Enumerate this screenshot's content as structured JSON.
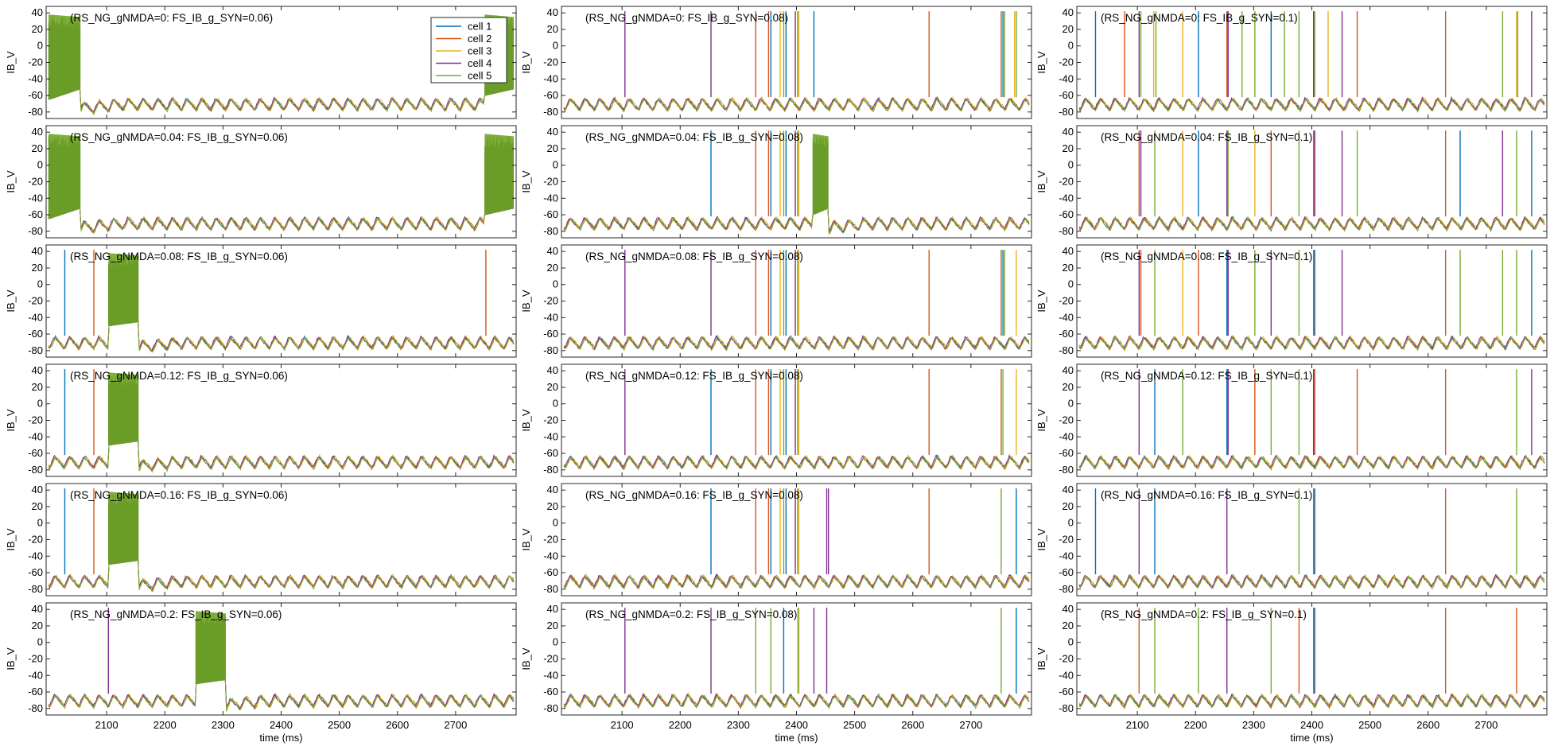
{
  "figure": {
    "ylabel": "IB_V",
    "xlabel": "time (ms)"
  },
  "legend": {
    "placement": "top-right of first panel",
    "entries": [
      {
        "name": "cell 1",
        "color": "#0072BD"
      },
      {
        "name": "cell 2",
        "color": "#D95319"
      },
      {
        "name": "cell 3",
        "color": "#EDB120"
      },
      {
        "name": "cell 4",
        "color": "#7E2F8E"
      },
      {
        "name": "cell 5",
        "color": "#77AC30"
      }
    ]
  },
  "chart_data": {
    "type": "line",
    "layout": "grid 6 rows x 3 columns",
    "xlim": [
      2000,
      2800
    ],
    "ylim": [
      -85,
      45
    ],
    "xticks": [
      2100,
      2200,
      2300,
      2400,
      2500,
      2600,
      2700
    ],
    "yticks": [
      -80,
      -60,
      -40,
      -20,
      0,
      20,
      40
    ],
    "xlabel": "time (ms)",
    "ylabel": "IB_V",
    "grid": false,
    "series_names": [
      "cell 1",
      "cell 2",
      "cell 3",
      "cell 4",
      "cell 5"
    ],
    "columns": [
      {
        "FS_IB_g_SYN": "0.06"
      },
      {
        "FS_IB_g_SYN": "0.08"
      },
      {
        "FS_IB_g_SYN": "0.1"
      }
    ],
    "rows": [
      {
        "RS_NG_gNMDA": "0"
      },
      {
        "RS_NG_gNMDA": "0.04"
      },
      {
        "RS_NG_gNMDA": "0.08"
      },
      {
        "RS_NG_gNMDA": "0.12"
      },
      {
        "RS_NG_gNMDA": "0.16"
      },
      {
        "RS_NG_gNMDA": "0.2"
      }
    ],
    "panels": [
      {
        "title": "(RS_NG_gNMDA=0: FS_IB_g_SYN=0.06)",
        "bursts": [
          {
            "start": 2000,
            "end": 2055,
            "floor_start": -65,
            "floor_end": -52
          },
          {
            "start": 2750,
            "end": 2800,
            "floor_start": -60,
            "floor_end": -52
          }
        ],
        "spikes": []
      },
      {
        "title": "(RS_NG_gNMDA=0: FS_IB_g_SYN=0.08)",
        "bursts": [],
        "spikes": [
          {
            "t": 2105,
            "cell": 4
          },
          {
            "t": 2253,
            "cell": 4
          },
          {
            "t": 2330,
            "cell": 2
          },
          {
            "t": 2352,
            "cell": 2
          },
          {
            "t": 2356,
            "cell": 1
          },
          {
            "t": 2372,
            "cell": 3
          },
          {
            "t": 2378,
            "cell": 5
          },
          {
            "t": 2382,
            "cell": 1
          },
          {
            "t": 2398,
            "cell": 4
          },
          {
            "t": 2402,
            "cell": 5
          },
          {
            "t": 2404,
            "cell": 3
          },
          {
            "t": 2430,
            "cell": 1
          },
          {
            "t": 2628,
            "cell": 2
          },
          {
            "t": 2752,
            "cell": 2
          },
          {
            "t": 2755,
            "cell": 1
          },
          {
            "t": 2758,
            "cell": 5
          },
          {
            "t": 2775,
            "cell": 3
          },
          {
            "t": 2778,
            "cell": 5
          }
        ]
      },
      {
        "title": "(RS_NG_gNMDA=0: FS_IB_g_SYN=0.1)",
        "bursts": [],
        "spikes": [
          {
            "t": 2028,
            "cell": 1
          },
          {
            "t": 2078,
            "cell": 2
          },
          {
            "t": 2103,
            "cell": 4
          },
          {
            "t": 2106,
            "cell": 5
          },
          {
            "t": 2128,
            "cell": 3
          },
          {
            "t": 2132,
            "cell": 5
          },
          {
            "t": 2178,
            "cell": 3
          },
          {
            "t": 2205,
            "cell": 1
          },
          {
            "t": 2254,
            "cell": 2
          },
          {
            "t": 2256,
            "cell": 4
          },
          {
            "t": 2280,
            "cell": 5
          },
          {
            "t": 2302,
            "cell": 5
          },
          {
            "t": 2330,
            "cell": 1
          },
          {
            "t": 2353,
            "cell": 5
          },
          {
            "t": 2378,
            "cell": 5
          },
          {
            "t": 2403,
            "cell": 4
          },
          {
            "t": 2405,
            "cell": 5
          },
          {
            "t": 2428,
            "cell": 3
          },
          {
            "t": 2452,
            "cell": 4
          },
          {
            "t": 2478,
            "cell": 2
          },
          {
            "t": 2630,
            "cell": 2
          },
          {
            "t": 2728,
            "cell": 5
          },
          {
            "t": 2752,
            "cell": 3
          },
          {
            "t": 2754,
            "cell": 5
          },
          {
            "t": 2778,
            "cell": 4
          }
        ]
      },
      {
        "title": "(RS_NG_gNMDA=0.04: FS_IB_g_SYN=0.06)",
        "bursts": [
          {
            "start": 2000,
            "end": 2055,
            "floor_start": -65,
            "floor_end": -52
          },
          {
            "start": 2750,
            "end": 2800,
            "floor_start": -60,
            "floor_end": -52
          }
        ],
        "spikes": []
      },
      {
        "title": "(RS_NG_gNMDA=0.04: FS_IB_g_SYN=0.08)",
        "bursts": [
          {
            "start": 2428,
            "end": 2455,
            "floor_start": -60,
            "floor_end": -52
          }
        ],
        "spikes": [
          {
            "t": 2253,
            "cell": 1
          },
          {
            "t": 2330,
            "cell": 2
          },
          {
            "t": 2352,
            "cell": 2
          },
          {
            "t": 2356,
            "cell": 1
          },
          {
            "t": 2372,
            "cell": 3
          },
          {
            "t": 2378,
            "cell": 5
          },
          {
            "t": 2382,
            "cell": 1
          },
          {
            "t": 2398,
            "cell": 4
          },
          {
            "t": 2402,
            "cell": 5
          },
          {
            "t": 2404,
            "cell": 3
          }
        ]
      },
      {
        "title": "(RS_NG_gNMDA=0.04: FS_IB_g_SYN=0.1)",
        "bursts": [],
        "spikes": [
          {
            "t": 2103,
            "cell": 2
          },
          {
            "t": 2106,
            "cell": 4
          },
          {
            "t": 2130,
            "cell": 5
          },
          {
            "t": 2178,
            "cell": 3
          },
          {
            "t": 2205,
            "cell": 1
          },
          {
            "t": 2254,
            "cell": 4
          },
          {
            "t": 2256,
            "cell": 5
          },
          {
            "t": 2302,
            "cell": 3
          },
          {
            "t": 2330,
            "cell": 2
          },
          {
            "t": 2378,
            "cell": 5
          },
          {
            "t": 2403,
            "cell": 2
          },
          {
            "t": 2405,
            "cell": 4
          },
          {
            "t": 2452,
            "cell": 4
          },
          {
            "t": 2478,
            "cell": 5
          },
          {
            "t": 2630,
            "cell": 2
          },
          {
            "t": 2655,
            "cell": 1
          },
          {
            "t": 2728,
            "cell": 4
          },
          {
            "t": 2752,
            "cell": 5
          },
          {
            "t": 2778,
            "cell": 1
          }
        ]
      },
      {
        "title": "(RS_NG_gNMDA=0.08: FS_IB_g_SYN=0.06)",
        "bursts": [
          {
            "start": 2103,
            "end": 2155,
            "floor_start": -50,
            "floor_end": -45
          }
        ],
        "spikes": [
          {
            "t": 2028,
            "cell": 1
          },
          {
            "t": 2078,
            "cell": 2
          },
          {
            "t": 2752,
            "cell": 2
          }
        ]
      },
      {
        "title": "(RS_NG_gNMDA=0.08: FS_IB_g_SYN=0.08)",
        "bursts": [],
        "spikes": [
          {
            "t": 2105,
            "cell": 4
          },
          {
            "t": 2253,
            "cell": 4
          },
          {
            "t": 2330,
            "cell": 2
          },
          {
            "t": 2352,
            "cell": 2
          },
          {
            "t": 2356,
            "cell": 1
          },
          {
            "t": 2372,
            "cell": 3
          },
          {
            "t": 2378,
            "cell": 5
          },
          {
            "t": 2382,
            "cell": 1
          },
          {
            "t": 2398,
            "cell": 4
          },
          {
            "t": 2402,
            "cell": 5
          },
          {
            "t": 2404,
            "cell": 3
          },
          {
            "t": 2628,
            "cell": 2
          },
          {
            "t": 2752,
            "cell": 2
          },
          {
            "t": 2755,
            "cell": 1
          },
          {
            "t": 2758,
            "cell": 5
          },
          {
            "t": 2778,
            "cell": 3
          }
        ]
      },
      {
        "title": "(RS_NG_gNMDA=0.08: FS_IB_g_SYN=0.1)",
        "bursts": [],
        "spikes": [
          {
            "t": 2103,
            "cell": 4
          },
          {
            "t": 2106,
            "cell": 2
          },
          {
            "t": 2130,
            "cell": 5
          },
          {
            "t": 2178,
            "cell": 3
          },
          {
            "t": 2205,
            "cell": 2
          },
          {
            "t": 2254,
            "cell": 1
          },
          {
            "t": 2256,
            "cell": 4
          },
          {
            "t": 2302,
            "cell": 5
          },
          {
            "t": 2330,
            "cell": 4
          },
          {
            "t": 2378,
            "cell": 5
          },
          {
            "t": 2403,
            "cell": 2
          },
          {
            "t": 2405,
            "cell": 1
          },
          {
            "t": 2452,
            "cell": 4
          },
          {
            "t": 2630,
            "cell": 2
          },
          {
            "t": 2655,
            "cell": 5
          },
          {
            "t": 2728,
            "cell": 5
          },
          {
            "t": 2752,
            "cell": 5
          },
          {
            "t": 2778,
            "cell": 1
          }
        ]
      },
      {
        "title": "(RS_NG_gNMDA=0.12: FS_IB_g_SYN=0.06)",
        "bursts": [
          {
            "start": 2103,
            "end": 2155,
            "floor_start": -50,
            "floor_end": -45
          }
        ],
        "spikes": [
          {
            "t": 2028,
            "cell": 1
          },
          {
            "t": 2078,
            "cell": 2
          }
        ]
      },
      {
        "title": "(RS_NG_gNMDA=0.12: FS_IB_g_SYN=0.08)",
        "bursts": [],
        "spikes": [
          {
            "t": 2105,
            "cell": 4
          },
          {
            "t": 2253,
            "cell": 1
          },
          {
            "t": 2330,
            "cell": 2
          },
          {
            "t": 2352,
            "cell": 2
          },
          {
            "t": 2356,
            "cell": 1
          },
          {
            "t": 2372,
            "cell": 3
          },
          {
            "t": 2378,
            "cell": 5
          },
          {
            "t": 2382,
            "cell": 1
          },
          {
            "t": 2398,
            "cell": 4
          },
          {
            "t": 2402,
            "cell": 5
          },
          {
            "t": 2404,
            "cell": 3
          },
          {
            "t": 2628,
            "cell": 2
          },
          {
            "t": 2752,
            "cell": 2
          },
          {
            "t": 2755,
            "cell": 5
          },
          {
            "t": 2778,
            "cell": 3
          }
        ]
      },
      {
        "title": "(RS_NG_gNMDA=0.12: FS_IB_g_SYN=0.1)",
        "bursts": [],
        "spikes": [
          {
            "t": 2103,
            "cell": 4
          },
          {
            "t": 2130,
            "cell": 1
          },
          {
            "t": 2178,
            "cell": 5
          },
          {
            "t": 2254,
            "cell": 1
          },
          {
            "t": 2256,
            "cell": 4
          },
          {
            "t": 2302,
            "cell": 2
          },
          {
            "t": 2330,
            "cell": 5
          },
          {
            "t": 2378,
            "cell": 5
          },
          {
            "t": 2403,
            "cell": 4
          },
          {
            "t": 2405,
            "cell": 2
          },
          {
            "t": 2478,
            "cell": 2
          },
          {
            "t": 2630,
            "cell": 2
          },
          {
            "t": 2752,
            "cell": 5
          },
          {
            "t": 2778,
            "cell": 4
          }
        ]
      },
      {
        "title": "(RS_NG_gNMDA=0.16: FS_IB_g_SYN=0.06)",
        "bursts": [
          {
            "start": 2103,
            "end": 2155,
            "floor_start": -50,
            "floor_end": -45
          }
        ],
        "spikes": [
          {
            "t": 2028,
            "cell": 1
          },
          {
            "t": 2078,
            "cell": 2
          }
        ]
      },
      {
        "title": "(RS_NG_gNMDA=0.16: FS_IB_g_SYN=0.08)",
        "bursts": [],
        "spikes": [
          {
            "t": 2253,
            "cell": 1
          },
          {
            "t": 2330,
            "cell": 2
          },
          {
            "t": 2352,
            "cell": 2
          },
          {
            "t": 2356,
            "cell": 1
          },
          {
            "t": 2372,
            "cell": 3
          },
          {
            "t": 2378,
            "cell": 5
          },
          {
            "t": 2382,
            "cell": 1
          },
          {
            "t": 2398,
            "cell": 4
          },
          {
            "t": 2402,
            "cell": 5
          },
          {
            "t": 2404,
            "cell": 3
          },
          {
            "t": 2452,
            "cell": 4
          },
          {
            "t": 2455,
            "cell": 4
          },
          {
            "t": 2628,
            "cell": 2
          },
          {
            "t": 2752,
            "cell": 5
          },
          {
            "t": 2778,
            "cell": 1
          }
        ]
      },
      {
        "title": "(RS_NG_gNMDA=0.16: FS_IB_g_SYN=0.1)",
        "bursts": [],
        "spikes": [
          {
            "t": 2028,
            "cell": 1
          },
          {
            "t": 2103,
            "cell": 4
          },
          {
            "t": 2130,
            "cell": 1
          },
          {
            "t": 2254,
            "cell": 4
          },
          {
            "t": 2378,
            "cell": 5
          },
          {
            "t": 2403,
            "cell": 2
          },
          {
            "t": 2405,
            "cell": 1
          },
          {
            "t": 2630,
            "cell": 2
          },
          {
            "t": 2752,
            "cell": 5
          }
        ]
      },
      {
        "title": "(RS_NG_gNMDA=0.2: FS_IB_g_SYN=0.06)",
        "bursts": [
          {
            "start": 2253,
            "end": 2305,
            "floor_start": -50,
            "floor_end": -45
          }
        ],
        "spikes": [
          {
            "t": 2103,
            "cell": 4
          }
        ]
      },
      {
        "title": "(RS_NG_gNMDA=0.2: FS_IB_g_SYN=0.08)",
        "bursts": [],
        "spikes": [
          {
            "t": 2105,
            "cell": 4
          },
          {
            "t": 2253,
            "cell": 4
          },
          {
            "t": 2330,
            "cell": 5
          },
          {
            "t": 2356,
            "cell": 5
          },
          {
            "t": 2378,
            "cell": 1
          },
          {
            "t": 2402,
            "cell": 3
          },
          {
            "t": 2404,
            "cell": 5
          },
          {
            "t": 2430,
            "cell": 4
          },
          {
            "t": 2452,
            "cell": 4
          },
          {
            "t": 2752,
            "cell": 5
          },
          {
            "t": 2778,
            "cell": 1
          }
        ]
      },
      {
        "title": "(RS_NG_gNMDA=0.2: FS_IB_g_SYN=0.1)",
        "bursts": [],
        "spikes": [
          {
            "t": 2103,
            "cell": 2
          },
          {
            "t": 2130,
            "cell": 5
          },
          {
            "t": 2205,
            "cell": 5
          },
          {
            "t": 2254,
            "cell": 4
          },
          {
            "t": 2330,
            "cell": 5
          },
          {
            "t": 2378,
            "cell": 2
          },
          {
            "t": 2403,
            "cell": 2
          },
          {
            "t": 2405,
            "cell": 1
          },
          {
            "t": 2630,
            "cell": 2
          },
          {
            "t": 2752,
            "cell": 2
          }
        ]
      }
    ]
  }
}
